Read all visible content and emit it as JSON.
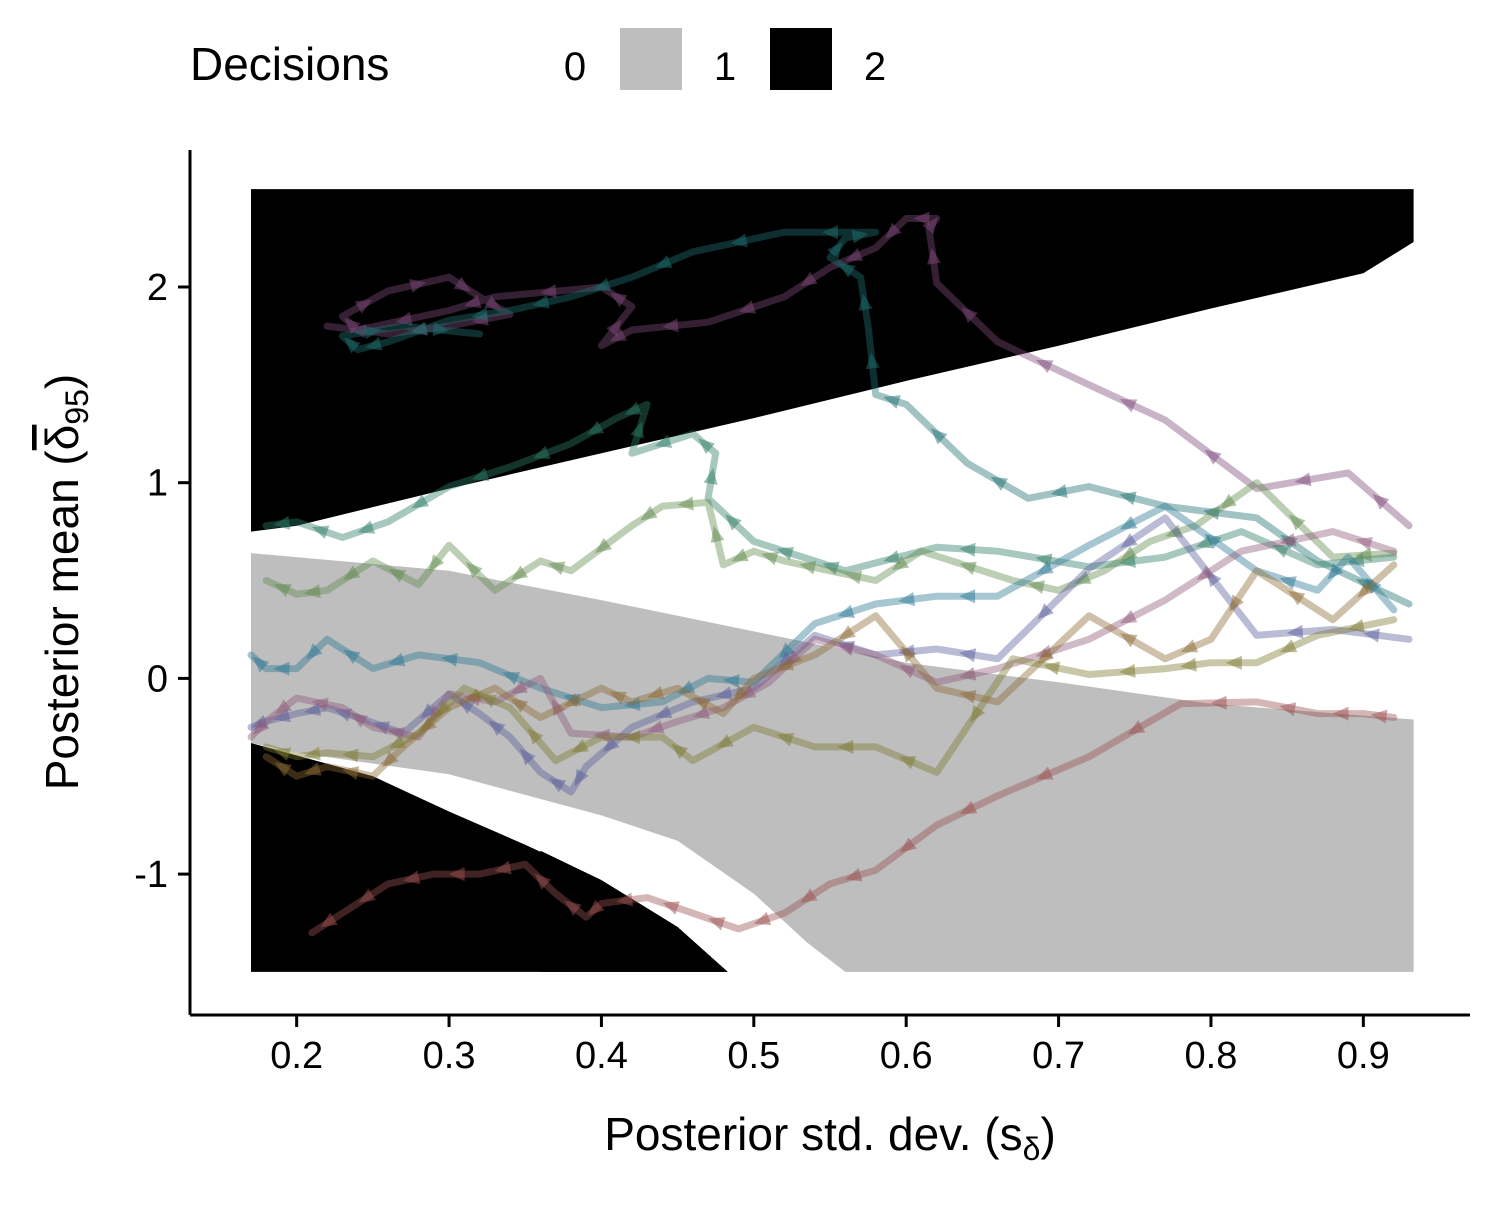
{
  "chart_data": {
    "type": "line",
    "xlabel": "Posterior std. dev. (s",
    "xlabel_sub": "δ",
    "xlabel_close": ")",
    "ylabel": "Posterior mean (",
    "ylabel_sym": "δ",
    "ylabel_sub": "95",
    "ylabel_close": ")",
    "xlim": [
      0.13,
      0.97
    ],
    "ylim": [
      -1.72,
      2.7
    ],
    "x_ticks": [
      0.2,
      0.3,
      0.4,
      0.5,
      0.6,
      0.7,
      0.8,
      0.9
    ],
    "x_tick_labels": [
      "0.2",
      "0.3",
      "0.4",
      "0.5",
      "0.6",
      "0.7",
      "0.8",
      "0.9"
    ],
    "y_ticks": [
      2,
      1,
      0,
      -1
    ],
    "y_tick_labels": [
      "2",
      "1",
      "0",
      "-1"
    ],
    "legend": {
      "title": "Decisions",
      "position": "top",
      "entries": [
        {
          "label": "0",
          "color": "#ffffff"
        },
        {
          "label": "1",
          "color": "#bebebe"
        },
        {
          "label": "2",
          "color": "#000000"
        }
      ]
    },
    "regions": {
      "x_range": [
        0.17,
        0.933
      ],
      "y_range": [
        -1.5,
        2.5
      ],
      "decision2_upper_boundary": [
        [
          0.17,
          0.75
        ],
        [
          0.2,
          0.78
        ],
        [
          0.3,
          0.97
        ],
        [
          0.4,
          1.15
        ],
        [
          0.5,
          1.33
        ],
        [
          0.6,
          1.52
        ],
        [
          0.7,
          1.7
        ],
        [
          0.8,
          1.89
        ],
        [
          0.9,
          2.07
        ],
        [
          0.933,
          2.23
        ]
      ],
      "decision1_upper_boundary": [
        [
          0.17,
          0.64
        ],
        [
          0.3,
          0.55
        ],
        [
          0.4,
          0.4
        ],
        [
          0.5,
          0.24
        ],
        [
          0.6,
          0.08
        ],
        [
          0.7,
          -0.02
        ],
        [
          0.8,
          -0.13
        ],
        [
          0.933,
          -0.21
        ]
      ],
      "decision1_lower_boundary": [
        [
          0.17,
          -0.33
        ],
        [
          0.2,
          -0.38
        ],
        [
          0.3,
          -0.49
        ],
        [
          0.4,
          -0.7
        ],
        [
          0.45,
          -0.83
        ],
        [
          0.5,
          -1.1
        ],
        [
          0.535,
          -1.35
        ],
        [
          0.56,
          -1.5
        ]
      ],
      "decision2_lower_boundary": [
        [
          0.17,
          -0.33
        ],
        [
          0.25,
          -0.5
        ],
        [
          0.3,
          -0.68
        ],
        [
          0.35,
          -0.85
        ],
        [
          0.4,
          -1.03
        ],
        [
          0.45,
          -1.27
        ],
        [
          0.483,
          -1.5
        ]
      ],
      "decision0_notch_upper": [
        [
          0.36,
          -0.88
        ],
        [
          0.45,
          -1.02
        ],
        [
          0.5,
          -1.1
        ],
        [
          0.535,
          -1.35
        ],
        [
          0.56,
          -1.5
        ]
      ]
    },
    "series": [
      {
        "color": "#7f4a7a",
        "x": [
          0.93,
          0.89,
          0.83,
          0.77,
          0.72,
          0.66,
          0.62,
          0.615,
          0.62,
          0.6,
          0.58,
          0.55,
          0.52,
          0.47,
          0.42,
          0.4,
          0.42,
          0.4,
          0.33,
          0.3,
          0.24,
          0.23,
          0.26,
          0.3,
          0.32,
          0.34,
          0.3,
          0.26,
          0.22
        ],
        "y": [
          0.78,
          1.05,
          0.97,
          1.32,
          1.5,
          1.72,
          2.02,
          2.3,
          2.35,
          2.35,
          2.2,
          2.1,
          1.95,
          1.82,
          1.78,
          1.7,
          1.9,
          2.0,
          1.95,
          1.88,
          1.78,
          1.85,
          1.98,
          2.05,
          1.95,
          1.86,
          1.8,
          1.76,
          1.8
        ]
      },
      {
        "color": "#1f6f70",
        "x": [
          0.93,
          0.87,
          0.83,
          0.77,
          0.72,
          0.68,
          0.64,
          0.6,
          0.58,
          0.575,
          0.57,
          0.55,
          0.56,
          0.58,
          0.52,
          0.46,
          0.42,
          0.38,
          0.34,
          0.3,
          0.26,
          0.24,
          0.23,
          0.27,
          0.32
        ],
        "y": [
          0.38,
          0.6,
          0.82,
          0.88,
          0.98,
          0.92,
          1.1,
          1.4,
          1.45,
          1.8,
          2.05,
          2.15,
          2.25,
          2.28,
          2.28,
          2.18,
          2.05,
          1.95,
          1.88,
          1.83,
          1.72,
          1.68,
          1.75,
          1.8,
          1.76
        ]
      },
      {
        "color": "#2e7b66",
        "x": [
          0.92,
          0.87,
          0.82,
          0.77,
          0.72,
          0.66,
          0.62,
          0.56,
          0.54,
          0.5,
          0.47,
          0.475,
          0.46,
          0.42,
          0.43,
          0.41,
          0.38,
          0.34,
          0.3,
          0.26,
          0.23,
          0.2,
          0.18
        ],
        "y": [
          0.62,
          0.58,
          0.75,
          0.62,
          0.57,
          0.65,
          0.67,
          0.55,
          0.6,
          0.7,
          0.92,
          1.15,
          1.25,
          1.15,
          1.4,
          1.33,
          1.2,
          1.08,
          0.98,
          0.8,
          0.72,
          0.8,
          0.78
        ]
      },
      {
        "color": "#5f8a4c",
        "x": [
          0.92,
          0.88,
          0.83,
          0.79,
          0.76,
          0.73,
          0.7,
          0.67,
          0.61,
          0.58,
          0.55,
          0.52,
          0.5,
          0.48,
          0.47,
          0.44,
          0.42,
          0.38,
          0.36,
          0.33,
          0.3,
          0.28,
          0.25,
          0.22,
          0.2,
          0.18
        ],
        "y": [
          0.64,
          0.62,
          1.0,
          0.78,
          0.7,
          0.55,
          0.45,
          0.5,
          0.65,
          0.5,
          0.55,
          0.6,
          0.65,
          0.58,
          0.9,
          0.88,
          0.78,
          0.55,
          0.6,
          0.45,
          0.68,
          0.48,
          0.6,
          0.45,
          0.43,
          0.5
        ]
      },
      {
        "color": "#2b7893",
        "x": [
          0.92,
          0.89,
          0.87,
          0.83,
          0.77,
          0.72,
          0.66,
          0.62,
          0.58,
          0.54,
          0.5,
          0.47,
          0.44,
          0.4,
          0.36,
          0.32,
          0.28,
          0.25,
          0.22,
          0.2,
          0.18,
          0.17
        ],
        "y": [
          0.35,
          0.62,
          0.45,
          0.55,
          0.88,
          0.68,
          0.42,
          0.42,
          0.38,
          0.28,
          -0.02,
          0.0,
          -0.12,
          -0.15,
          -0.05,
          0.08,
          0.12,
          0.05,
          0.2,
          0.05,
          0.05,
          0.12
        ]
      },
      {
        "color": "#5a5e9c",
        "x": [
          0.93,
          0.88,
          0.83,
          0.77,
          0.72,
          0.66,
          0.62,
          0.58,
          0.54,
          0.5,
          0.46,
          0.42,
          0.39,
          0.38,
          0.36,
          0.34,
          0.32,
          0.3,
          0.27,
          0.24,
          0.22,
          0.2,
          0.18,
          0.17
        ],
        "y": [
          0.2,
          0.25,
          0.22,
          0.82,
          0.56,
          0.1,
          0.15,
          0.12,
          0.22,
          -0.05,
          -0.12,
          -0.25,
          -0.45,
          -0.58,
          -0.48,
          -0.3,
          -0.18,
          -0.08,
          -0.28,
          -0.2,
          -0.15,
          -0.18,
          -0.22,
          -0.25
        ]
      },
      {
        "color": "#8e5a7a",
        "x": [
          0.92,
          0.88,
          0.82,
          0.77,
          0.72,
          0.66,
          0.62,
          0.58,
          0.54,
          0.51,
          0.48,
          0.45,
          0.42,
          0.38,
          0.36,
          0.33,
          0.3,
          0.28,
          0.25,
          0.23,
          0.2,
          0.18,
          0.17
        ],
        "y": [
          0.65,
          0.75,
          0.65,
          0.4,
          0.2,
          0.05,
          -0.02,
          0.12,
          0.2,
          -0.02,
          -0.15,
          -0.22,
          -0.3,
          -0.28,
          0.0,
          -0.12,
          -0.08,
          -0.3,
          -0.25,
          -0.15,
          -0.1,
          -0.22,
          -0.3
        ]
      },
      {
        "color": "#8c6a35",
        "x": [
          0.92,
          0.88,
          0.83,
          0.8,
          0.77,
          0.72,
          0.66,
          0.62,
          0.58,
          0.54,
          0.5,
          0.48,
          0.45,
          0.42,
          0.4,
          0.36,
          0.33,
          0.3,
          0.27,
          0.25,
          0.22,
          0.2,
          0.18
        ],
        "y": [
          0.58,
          0.3,
          0.55,
          0.2,
          0.1,
          0.32,
          -0.12,
          -0.05,
          0.32,
          0.12,
          0.0,
          -0.18,
          -0.05,
          -0.12,
          -0.05,
          -0.2,
          -0.05,
          -0.15,
          -0.35,
          -0.5,
          -0.45,
          -0.5,
          -0.4
        ]
      },
      {
        "color": "#7c7a30",
        "x": [
          0.92,
          0.87,
          0.83,
          0.8,
          0.77,
          0.72,
          0.67,
          0.62,
          0.58,
          0.54,
          0.5,
          0.46,
          0.44,
          0.4,
          0.37,
          0.34,
          0.31,
          0.28,
          0.25,
          0.22,
          0.2,
          0.18
        ],
        "y": [
          0.3,
          0.22,
          0.08,
          0.08,
          0.05,
          0.02,
          0.1,
          -0.48,
          -0.35,
          -0.35,
          -0.25,
          -0.42,
          -0.3,
          -0.3,
          -0.42,
          -0.15,
          -0.05,
          -0.28,
          -0.4,
          -0.38,
          -0.4,
          -0.35
        ]
      },
      {
        "color": "#9a5050",
        "x": [
          0.92,
          0.9,
          0.87,
          0.83,
          0.78,
          0.72,
          0.66,
          0.62,
          0.58,
          0.55,
          0.52,
          0.49,
          0.46,
          0.43,
          0.4,
          0.39,
          0.37,
          0.35,
          0.32,
          0.29,
          0.26,
          0.23,
          0.21
        ],
        "y": [
          -0.2,
          -0.18,
          -0.18,
          -0.12,
          -0.13,
          -0.4,
          -0.6,
          -0.75,
          -0.98,
          -1.05,
          -1.2,
          -1.28,
          -1.2,
          -1.12,
          -1.15,
          -1.22,
          -1.1,
          -0.95,
          -1.0,
          -1.0,
          -1.05,
          -1.2,
          -1.3
        ]
      }
    ]
  }
}
